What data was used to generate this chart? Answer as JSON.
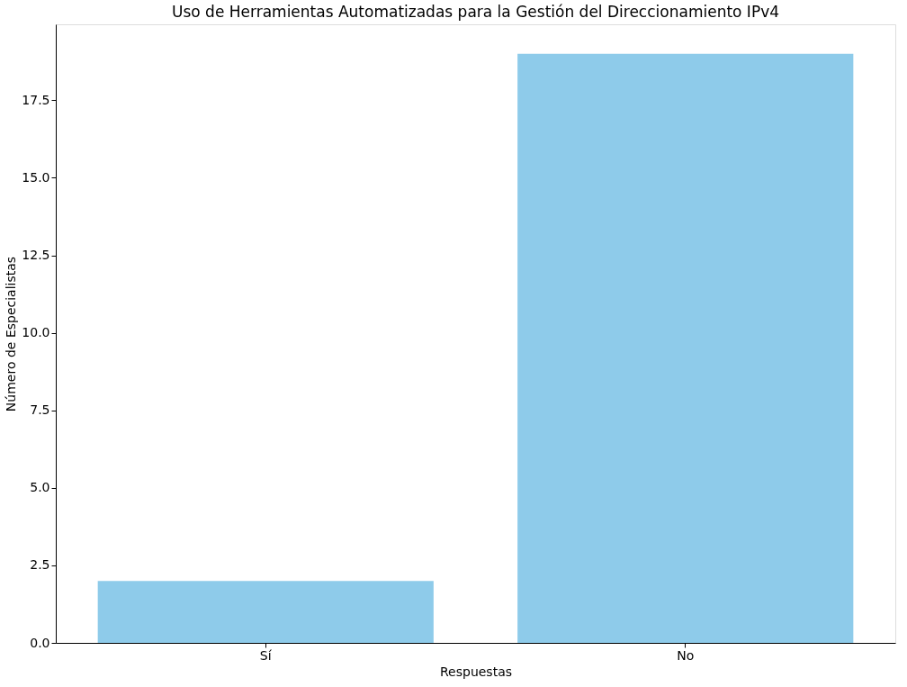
{
  "chart_data": {
    "type": "bar",
    "title": "Uso de Herramientas Automatizadas para la Gestión del Direccionamiento IPv4",
    "xlabel": "Respuestas",
    "ylabel": "Número de Especialistas",
    "categories": [
      "Sí",
      "No"
    ],
    "values": [
      2,
      19
    ],
    "color": "#8ecbea",
    "ylim": [
      0,
      19.95
    ],
    "yticks": [
      {
        "value": 0,
        "label": "0.0"
      },
      {
        "value": 2.5,
        "label": "2.5"
      },
      {
        "value": 5,
        "label": "5.0"
      },
      {
        "value": 7.5,
        "label": "7.5"
      },
      {
        "value": 10,
        "label": "10.0"
      },
      {
        "value": 12.5,
        "label": "12.5"
      },
      {
        "value": 15,
        "label": "15.0"
      },
      {
        "value": 17.5,
        "label": "17.5"
      }
    ],
    "grid": false
  }
}
